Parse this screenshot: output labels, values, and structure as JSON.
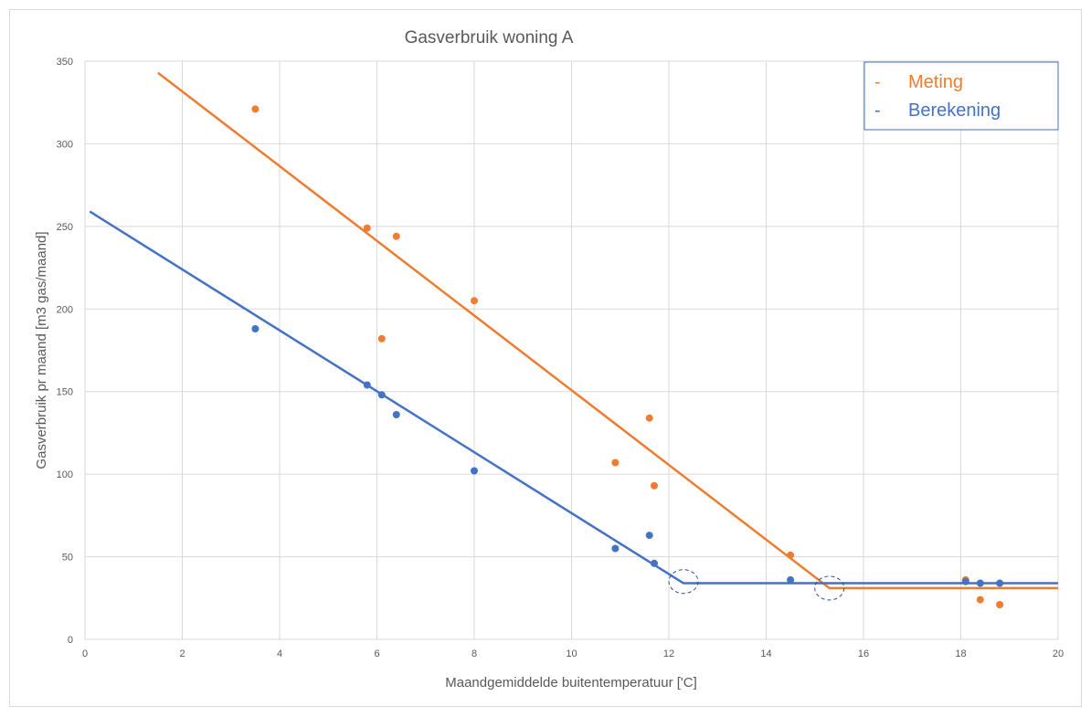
{
  "chart_data": {
    "type": "scatter",
    "title": "Gasverbruik woning A",
    "xlabel": "Maandgemiddelde buitentemperatuur  ['C]",
    "ylabel": "Gasverbruik pr maand [m3 gas/maand]",
    "xlim": [
      0,
      20
    ],
    "ylim": [
      0,
      350
    ],
    "x_ticks": [
      0,
      2,
      4,
      6,
      8,
      10,
      12,
      14,
      16,
      18,
      20
    ],
    "y_ticks": [
      0,
      50,
      100,
      150,
      200,
      250,
      300,
      350
    ],
    "grid": true,
    "legend_position": "top-right",
    "series": [
      {
        "name": "Meting",
        "marker": "-",
        "color": "#ED7D31",
        "points": [
          [
            3.5,
            321
          ],
          [
            5.8,
            249
          ],
          [
            6.4,
            244
          ],
          [
            6.1,
            182
          ],
          [
            8.0,
            205
          ],
          [
            11.6,
            134
          ],
          [
            10.9,
            107
          ],
          [
            11.7,
            93
          ],
          [
            14.5,
            51
          ],
          [
            18.1,
            36
          ],
          [
            18.4,
            24
          ],
          [
            18.8,
            21
          ]
        ],
        "trend_line": [
          [
            1.5,
            343
          ],
          [
            15.3,
            31
          ],
          [
            20.0,
            31
          ]
        ]
      },
      {
        "name": "Berekening",
        "marker": "-",
        "color": "#4472C4",
        "points": [
          [
            3.5,
            188
          ],
          [
            5.8,
            154
          ],
          [
            6.1,
            148
          ],
          [
            6.4,
            136
          ],
          [
            8.0,
            102
          ],
          [
            10.9,
            55
          ],
          [
            11.6,
            63
          ],
          [
            11.7,
            46
          ],
          [
            14.5,
            36
          ],
          [
            18.1,
            35
          ],
          [
            18.4,
            34
          ],
          [
            18.8,
            34
          ]
        ],
        "trend_line": [
          [
            0.1,
            259
          ],
          [
            12.3,
            34
          ],
          [
            20.0,
            34
          ]
        ]
      }
    ],
    "annotations": [
      {
        "shape": "dashed-ellipse",
        "x": 12.3,
        "y": 35,
        "color": "#2F4F8F"
      },
      {
        "shape": "dashed-ellipse",
        "x": 15.3,
        "y": 31,
        "color": "#2F4F8F"
      }
    ]
  }
}
